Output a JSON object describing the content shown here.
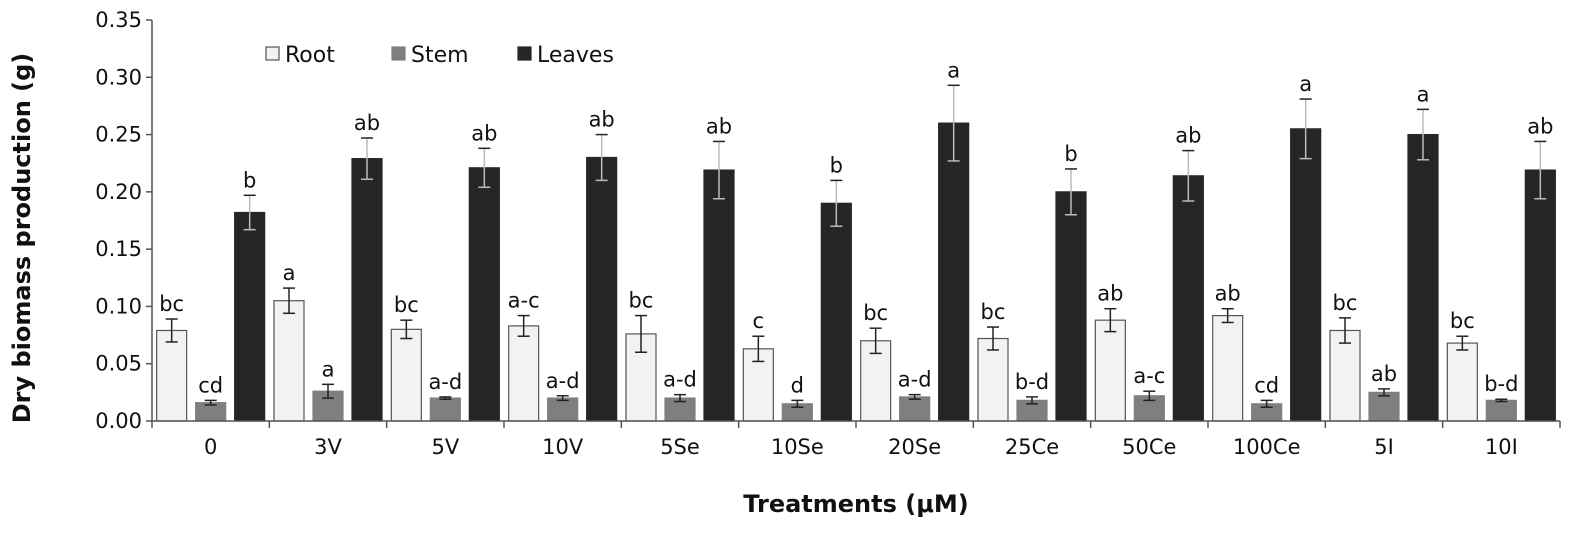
{
  "chart_data": {
    "type": "bar",
    "xlabel": "Treatments (μM)",
    "ylabel": "Dry biomass production (g)",
    "ylim": [
      0,
      0.35
    ],
    "yticks": [
      "0.00",
      "0.05",
      "0.10",
      "0.15",
      "0.20",
      "0.25",
      "0.30",
      "0.35"
    ],
    "grid": false,
    "legend_position": "top-left",
    "categories": [
      "0",
      "3V",
      "5V",
      "10V",
      "5Se",
      "10Se",
      "20Se",
      "25Ce",
      "50Ce",
      "100Ce",
      "5I",
      "10I"
    ],
    "series": [
      {
        "name": "Root",
        "color": "#f2f2f2",
        "values": [
          0.079,
          0.105,
          0.08,
          0.083,
          0.076,
          0.063,
          0.07,
          0.072,
          0.088,
          0.092,
          0.079,
          0.068
        ],
        "errors": [
          0.01,
          0.011,
          0.008,
          0.009,
          0.016,
          0.011,
          0.011,
          0.01,
          0.01,
          0.006,
          0.011,
          0.006
        ],
        "sig": [
          "bc",
          "a",
          "bc",
          "a-c",
          "bc",
          "c",
          "bc",
          "bc",
          "ab",
          "ab",
          "bc",
          "bc"
        ]
      },
      {
        "name": "Stem",
        "color": "#7f7f7f",
        "values": [
          0.016,
          0.026,
          0.02,
          0.02,
          0.02,
          0.015,
          0.021,
          0.018,
          0.022,
          0.015,
          0.025,
          0.018
        ],
        "errors": [
          0.002,
          0.006,
          0.001,
          0.002,
          0.003,
          0.003,
          0.002,
          0.003,
          0.004,
          0.003,
          0.003,
          0.001
        ],
        "sig": [
          "cd",
          "a",
          "a-d",
          "a-d",
          "a-d",
          "d",
          "a-d",
          "b-d",
          "a-c",
          "cd",
          "ab",
          "b-d"
        ]
      },
      {
        "name": "Leaves",
        "color": "#262626",
        "values": [
          0.182,
          0.229,
          0.221,
          0.23,
          0.219,
          0.19,
          0.26,
          0.2,
          0.214,
          0.255,
          0.25,
          0.219
        ],
        "errors": [
          0.015,
          0.018,
          0.017,
          0.02,
          0.025,
          0.02,
          0.033,
          0.02,
          0.022,
          0.026,
          0.022,
          0.025
        ],
        "sig": [
          "b",
          "ab",
          "ab",
          "ab",
          "ab",
          "b",
          "a",
          "b",
          "ab",
          "a",
          "a",
          "ab"
        ]
      }
    ]
  }
}
